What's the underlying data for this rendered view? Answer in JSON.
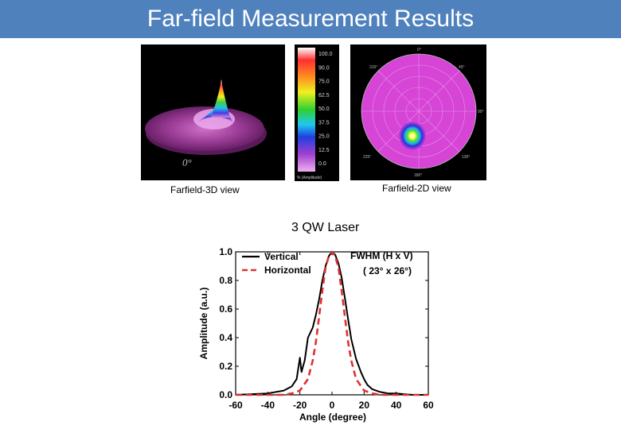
{
  "title": "Far-field Measurement Results",
  "images": {
    "view3d_caption": "Farfield-3D view",
    "view3d_angle_label": "0°",
    "view2d_caption": "Farfield-2D view",
    "colorbar_labels": [
      "100.0",
      "90.0",
      "75.0",
      "62.5",
      "50.0",
      "37.5",
      "25.0",
      "12.5",
      "0.0"
    ],
    "colorbar_footer": "% (Amplitude)"
  },
  "laser_label": "3 QW Laser",
  "chart_data": {
    "type": "line",
    "xlabel": "Angle (degree)",
    "ylabel": "Amplitude (a.u.)",
    "xlim": [
      -60,
      60
    ],
    "ylim": [
      0.0,
      1.0
    ],
    "xticks": [
      -60,
      -40,
      -20,
      0,
      20,
      40,
      60
    ],
    "yticks": [
      "0.0",
      "0.2",
      "0.4",
      "0.6",
      "0.8",
      "1.0"
    ],
    "annotation_line1": "FWHM (H x V)",
    "annotation_line2": "( 23° x 26°)",
    "series": [
      {
        "name": "Vertical",
        "color": "#000000",
        "style": "solid",
        "x": [
          -60,
          -40,
          -30,
          -25,
          -22,
          -20,
          -19,
          -17,
          -15,
          -12,
          -10,
          -8,
          -6,
          -4,
          -2,
          0,
          2,
          4,
          6,
          8,
          10,
          12,
          15,
          18,
          20,
          22,
          25,
          30,
          35,
          40,
          50,
          60
        ],
        "y": [
          0.0,
          0.01,
          0.03,
          0.06,
          0.11,
          0.26,
          0.16,
          0.24,
          0.4,
          0.47,
          0.56,
          0.67,
          0.8,
          0.9,
          0.97,
          1.0,
          0.98,
          0.92,
          0.82,
          0.68,
          0.53,
          0.39,
          0.25,
          0.16,
          0.11,
          0.07,
          0.04,
          0.02,
          0.01,
          0.01,
          0.0,
          0.0
        ]
      },
      {
        "name": "Horizontal",
        "color": "#e03030",
        "style": "dashed",
        "x": [
          -60,
          -30,
          -25,
          -20,
          -15,
          -12,
          -10,
          -8,
          -6,
          -4,
          -2,
          0,
          2,
          4,
          6,
          8,
          10,
          12,
          15,
          20,
          25,
          30,
          60
        ],
        "y": [
          0.0,
          0.0,
          0.01,
          0.03,
          0.11,
          0.24,
          0.37,
          0.55,
          0.73,
          0.89,
          0.97,
          1.0,
          0.97,
          0.89,
          0.73,
          0.55,
          0.37,
          0.24,
          0.11,
          0.03,
          0.01,
          0.0,
          0.0
        ]
      }
    ]
  }
}
